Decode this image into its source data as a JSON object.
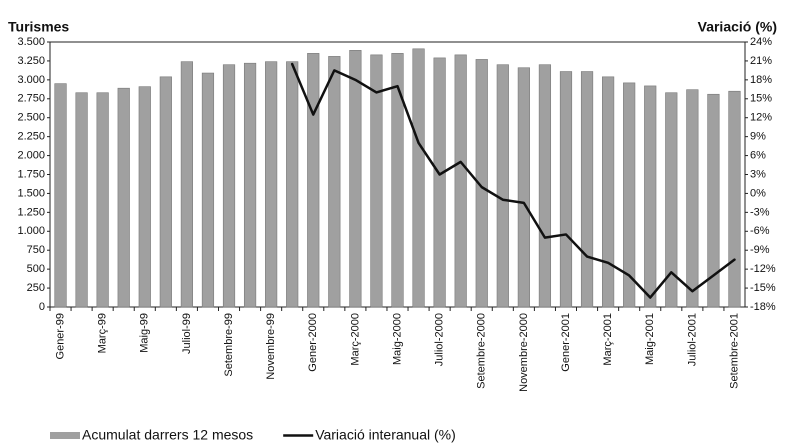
{
  "chart_data": {
    "type": "bar",
    "y_label": "Turismes",
    "y2_label": "Variació (%)",
    "categories": [
      "Gener-99",
      null,
      "Març-99",
      null,
      "Maig-99",
      null,
      "Juliol-99",
      null,
      "Setembre-99",
      null,
      "Novembre-99",
      null,
      "Gener-2000",
      null,
      "Març-2000",
      null,
      "Maig-2000",
      null,
      "Juliol-2000",
      null,
      "Setembre-2000",
      null,
      "Novembre-2000",
      null,
      "Gener-2001",
      null,
      "Març-2001",
      null,
      "Maig-2001",
      null,
      "Juliol-2001",
      null,
      "Setembre-2001"
    ],
    "series": [
      {
        "name": "Acumulat darrers 12 mesos",
        "color": "#a0a0a0",
        "values": [
          2950,
          2830,
          2830,
          2890,
          2910,
          3040,
          3240,
          3090,
          3200,
          3220,
          3240,
          3240,
          3350,
          3310,
          3390,
          3330,
          3350,
          3410,
          3290,
          3330,
          3270,
          3200,
          3160,
          3200,
          3110,
          3110,
          3040,
          2960,
          2920,
          2830,
          2870,
          2810,
          2850
        ]
      },
      {
        "name": "Variació interanual (%)",
        "color": "#111111",
        "type": "line",
        "axis": "y2",
        "values": [
          null,
          null,
          null,
          null,
          null,
          null,
          null,
          null,
          null,
          null,
          null,
          20.5,
          12.5,
          19.5,
          18,
          16,
          17,
          8,
          3,
          5,
          1,
          -1,
          -1.5,
          -7,
          -6.5,
          -10,
          -11,
          -13,
          -16.5,
          -12.5,
          -15.5,
          -13,
          -10.5
        ]
      }
    ],
    "ylim": [
      0,
      3500
    ],
    "yticks": [
      0,
      250,
      {
        "value": 500,
        "label": "500"
      },
      750,
      {
        "value": 1000,
        "label": "1.000"
      },
      {
        "value": 1250,
        "label": "1.250"
      },
      {
        "value": 1500,
        "label": "1.500"
      },
      {
        "value": 1750,
        "label": "1.750"
      },
      {
        "value": 2000,
        "label": "2.000"
      },
      {
        "value": 2250,
        "label": "2.250"
      },
      {
        "value": 2500,
        "label": "2.500"
      },
      {
        "value": 2750,
        "label": "2.750"
      },
      {
        "value": 3000,
        "label": "3.000"
      },
      {
        "value": 3250,
        "label": "3.250"
      },
      {
        "value": 3500,
        "label": "3.500"
      }
    ],
    "y2lim": [
      -18,
      24
    ],
    "y2ticks": [
      {
        "value": -18,
        "label": "-18%"
      },
      {
        "value": -15,
        "label": "-15%"
      },
      {
        "value": -12,
        "label": "-12%"
      },
      {
        "value": -9,
        "label": "-9%"
      },
      {
        "value": -6,
        "label": "-6%"
      },
      {
        "value": -3,
        "label": "-3%"
      },
      {
        "value": 0,
        "label": "0%"
      },
      {
        "value": 3,
        "label": "3%"
      },
      {
        "value": 6,
        "label": "6%"
      },
      {
        "value": 9,
        "label": "9%"
      },
      {
        "value": 12,
        "label": "12%"
      },
      {
        "value": 15,
        "label": "15%"
      },
      {
        "value": 18,
        "label": "18%"
      },
      {
        "value": 21,
        "label": "21%"
      },
      {
        "value": 24,
        "label": "24%"
      }
    ],
    "grid": false
  }
}
